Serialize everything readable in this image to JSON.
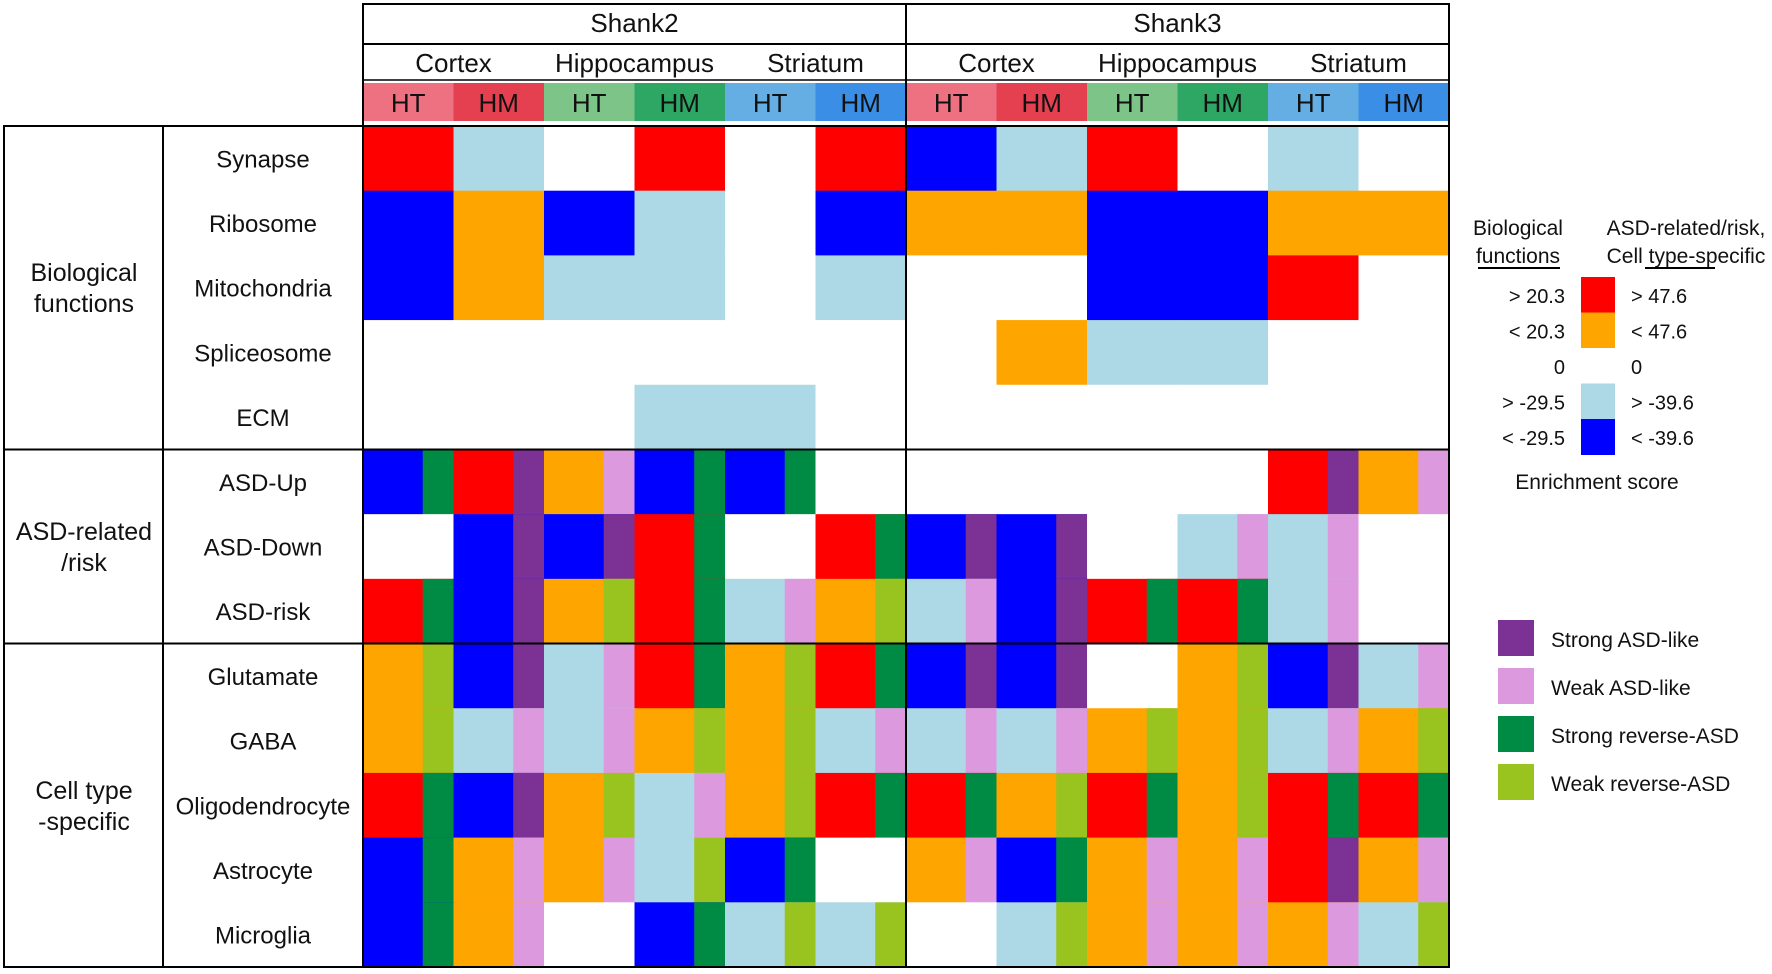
{
  "chart_data": {
    "type": "heatmap",
    "genes": [
      "Shank2",
      "Shank3"
    ],
    "regions": [
      "Cortex",
      "Hippocampus",
      "Striatum"
    ],
    "genotypes": [
      "HT",
      "HM"
    ],
    "column_colors": {
      "Cortex": {
        "HT": "#ee7182",
        "HM": "#e4404f"
      },
      "Hippocampus": {
        "HT": "#7dc489",
        "HM": "#2ea765"
      },
      "Striatum": {
        "HT": "#64aee3",
        "HM": "#3a8ee6"
      }
    },
    "row_groups": [
      {
        "label_lines": [
          "Biological",
          "functions"
        ],
        "rows": [
          "Synapse",
          "Ribosome",
          "Mitochondria",
          "Spliceosome",
          "ECM"
        ]
      },
      {
        "label_lines": [
          "ASD-related",
          "/risk"
        ],
        "rows": [
          "ASD-Up",
          "ASD-Down",
          "ASD-risk"
        ]
      },
      {
        "label_lines": [
          "Cell type",
          "-specific"
        ],
        "rows": [
          "Glutamate",
          "GABA",
          "Oligodendrocyte",
          "Astrocyte",
          "Microglia"
        ]
      }
    ],
    "enrichment_levels": {
      "strong_pos": "#ff0000",
      "weak_pos": "#ffa500",
      "none": "#ffffff",
      "weak_neg": "#add8e6",
      "strong_neg": "#0000ff"
    },
    "direction_levels": {
      "strong_asd": "#7b3294",
      "weak_asd": "#dd99dd",
      "strong_rev": "#008b45",
      "weak_rev": "#99c31f"
    },
    "function_cells": {
      "Synapse": [
        "strong_pos",
        "weak_neg",
        "none",
        "strong_pos",
        "none",
        "strong_pos",
        "strong_neg",
        "weak_neg",
        "strong_pos",
        "none",
        "weak_neg",
        "none"
      ],
      "Ribosome": [
        "strong_neg",
        "weak_pos",
        "strong_neg",
        "weak_neg",
        "none",
        "strong_neg",
        "weak_pos",
        "weak_pos",
        "strong_neg",
        "strong_neg",
        "weak_pos",
        "weak_pos"
      ],
      "Mitochondria": [
        "strong_neg",
        "weak_pos",
        "weak_neg",
        "weak_neg",
        "none",
        "weak_neg",
        "none",
        "none",
        "strong_neg",
        "strong_neg",
        "strong_pos",
        "none"
      ],
      "Spliceosome": [
        "none",
        "none",
        "none",
        "none",
        "none",
        "none",
        "none",
        "weak_pos",
        "weak_neg",
        "weak_neg",
        "none",
        "none"
      ],
      "ECM": [
        "none",
        "none",
        "none",
        "weak_neg",
        "weak_neg",
        "none",
        "none",
        "none",
        "none",
        "none",
        "none",
        "none"
      ]
    },
    "asd_cells": {
      "ASD-Up": [
        [
          "strong_neg",
          "strong_rev"
        ],
        [
          "strong_pos",
          "strong_asd"
        ],
        [
          "weak_pos",
          "weak_asd"
        ],
        [
          "strong_neg",
          "strong_rev"
        ],
        [
          "strong_neg",
          "strong_rev"
        ],
        [
          "none",
          null
        ],
        [
          "none",
          null
        ],
        [
          "none",
          null
        ],
        [
          "none",
          null
        ],
        [
          "none",
          null
        ],
        [
          "strong_pos",
          "strong_asd"
        ],
        [
          "weak_pos",
          "weak_asd"
        ]
      ],
      "ASD-Down": [
        [
          "none",
          null
        ],
        [
          "strong_neg",
          "strong_asd"
        ],
        [
          "strong_neg",
          "strong_asd"
        ],
        [
          "strong_pos",
          "strong_rev"
        ],
        [
          "none",
          null
        ],
        [
          "strong_pos",
          "strong_rev"
        ],
        [
          "strong_neg",
          "strong_asd"
        ],
        [
          "strong_neg",
          "strong_asd"
        ],
        [
          "none",
          null
        ],
        [
          "weak_neg",
          "weak_asd"
        ],
        [
          "weak_neg",
          "weak_asd"
        ],
        [
          "none",
          null
        ]
      ],
      "ASD-risk": [
        [
          "strong_pos",
          "strong_rev"
        ],
        [
          "strong_neg",
          "strong_asd"
        ],
        [
          "weak_pos",
          "weak_rev"
        ],
        [
          "strong_pos",
          "strong_rev"
        ],
        [
          "weak_neg",
          "weak_asd"
        ],
        [
          "weak_pos",
          "weak_rev"
        ],
        [
          "weak_neg",
          "weak_asd"
        ],
        [
          "strong_neg",
          "strong_asd"
        ],
        [
          "strong_pos",
          "strong_rev"
        ],
        [
          "strong_pos",
          "strong_rev"
        ],
        [
          "weak_neg",
          "weak_asd"
        ],
        [
          "none",
          null
        ]
      ],
      "Glutamate": [
        [
          "weak_pos",
          "weak_rev"
        ],
        [
          "strong_neg",
          "strong_asd"
        ],
        [
          "weak_neg",
          "weak_asd"
        ],
        [
          "strong_pos",
          "strong_rev"
        ],
        [
          "weak_pos",
          "weak_rev"
        ],
        [
          "strong_pos",
          "strong_rev"
        ],
        [
          "strong_neg",
          "strong_asd"
        ],
        [
          "strong_neg",
          "strong_asd"
        ],
        [
          "none",
          null
        ],
        [
          "weak_pos",
          "weak_rev"
        ],
        [
          "strong_neg",
          "strong_asd"
        ],
        [
          "weak_neg",
          "weak_asd"
        ]
      ],
      "GABA": [
        [
          "weak_pos",
          "weak_rev"
        ],
        [
          "weak_neg",
          "weak_asd"
        ],
        [
          "weak_neg",
          "weak_asd"
        ],
        [
          "weak_pos",
          "weak_rev"
        ],
        [
          "weak_pos",
          "weak_rev"
        ],
        [
          "weak_neg",
          "weak_asd"
        ],
        [
          "weak_neg",
          "weak_asd"
        ],
        [
          "weak_neg",
          "weak_asd"
        ],
        [
          "weak_pos",
          "weak_rev"
        ],
        [
          "weak_pos",
          "weak_rev"
        ],
        [
          "weak_neg",
          "weak_asd"
        ],
        [
          "weak_pos",
          "weak_rev"
        ]
      ],
      "Oligodendrocyte": [
        [
          "strong_pos",
          "strong_rev"
        ],
        [
          "strong_neg",
          "strong_asd"
        ],
        [
          "weak_pos",
          "weak_rev"
        ],
        [
          "weak_neg",
          "weak_asd"
        ],
        [
          "weak_pos",
          "weak_rev"
        ],
        [
          "strong_pos",
          "strong_rev"
        ],
        [
          "strong_pos",
          "strong_rev"
        ],
        [
          "weak_pos",
          "weak_rev"
        ],
        [
          "strong_pos",
          "strong_rev"
        ],
        [
          "weak_pos",
          "weak_rev"
        ],
        [
          "strong_pos",
          "strong_rev"
        ],
        [
          "strong_pos",
          "strong_rev"
        ]
      ],
      "Astrocyte": [
        [
          "strong_neg",
          "strong_rev"
        ],
        [
          "weak_pos",
          "weak_asd"
        ],
        [
          "weak_pos",
          "weak_asd"
        ],
        [
          "weak_neg",
          "weak_rev"
        ],
        [
          "strong_neg",
          "strong_rev"
        ],
        [
          "none",
          null
        ],
        [
          "weak_pos",
          "weak_asd"
        ],
        [
          "strong_neg",
          "strong_rev"
        ],
        [
          "weak_pos",
          "weak_asd"
        ],
        [
          "weak_pos",
          "weak_asd"
        ],
        [
          "strong_pos",
          "strong_asd"
        ],
        [
          "weak_pos",
          "weak_asd"
        ]
      ],
      "Microglia": [
        [
          "strong_neg",
          "strong_rev"
        ],
        [
          "weak_pos",
          "weak_asd"
        ],
        [
          "none",
          null
        ],
        [
          "strong_neg",
          "strong_rev"
        ],
        [
          "weak_neg",
          "weak_rev"
        ],
        [
          "weak_neg",
          "weak_rev"
        ],
        [
          "none",
          null
        ],
        [
          "weak_neg",
          "weak_rev"
        ],
        [
          "weak_pos",
          "weak_asd"
        ],
        [
          "weak_pos",
          "weak_asd"
        ],
        [
          "weak_pos",
          "weak_asd"
        ],
        [
          "weak_neg",
          "weak_rev"
        ]
      ]
    },
    "legend": {
      "col1_header": [
        "Biological",
        "functions"
      ],
      "col2_header": [
        "ASD-related/risk,",
        "Cell type-specific"
      ],
      "rows": [
        {
          "bio": "> 20.3",
          "asd": "> 47.6",
          "level": "strong_pos"
        },
        {
          "bio": "< 20.3",
          "asd": "< 47.6",
          "level": "weak_pos"
        },
        {
          "bio": "0",
          "asd": "0",
          "level": "none"
        },
        {
          "bio": "> -29.5",
          "asd": "> -39.6",
          "level": "weak_neg"
        },
        {
          "bio": "< -29.5",
          "asd": "< -39.6",
          "level": "strong_neg"
        }
      ],
      "caption": "Enrichment score",
      "direction_items": [
        {
          "label": "Strong ASD-like",
          "level": "strong_asd"
        },
        {
          "label": "Weak ASD-like",
          "level": "weak_asd"
        },
        {
          "label": "Strong reverse-ASD",
          "level": "strong_rev"
        },
        {
          "label": "Weak reverse-ASD",
          "level": "weak_rev"
        }
      ]
    }
  }
}
